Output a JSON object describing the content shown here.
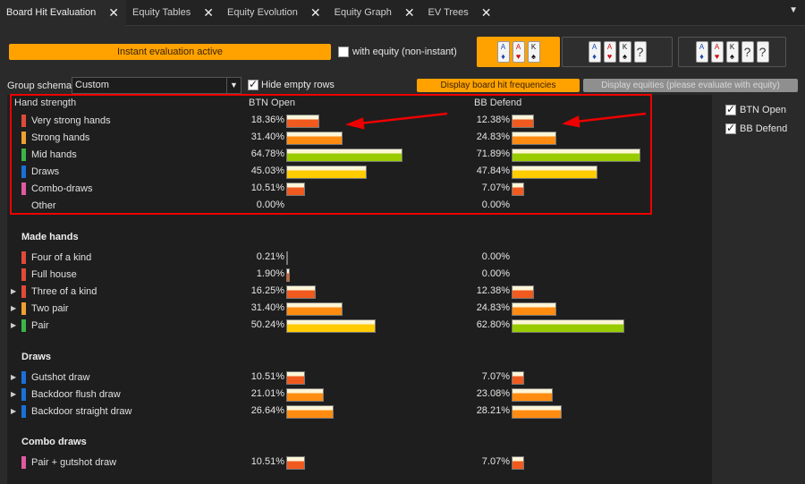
{
  "tabs": [
    {
      "label": "Board Hit Evaluation",
      "active": true
    },
    {
      "label": "Equity Tables"
    },
    {
      "label": "Equity Evolution"
    },
    {
      "label": "Equity Graph"
    },
    {
      "label": "EV Trees"
    }
  ],
  "controls": {
    "instant_label": "Instant evaluation active",
    "with_equity_label": "with equity (non-instant)",
    "group_schema_label": "Group schema:",
    "group_schema_value": "Custom",
    "hide_empty_label": "Hide empty rows",
    "display_freq_label": "Display board hit frequencies",
    "display_equity_label": "Display equities (please evaluate with equity)"
  },
  "card_groups": [
    [
      "A♦",
      "A♥",
      "K♠"
    ],
    [
      "A♦",
      "A♥",
      "K♠",
      "?"
    ],
    [
      "A♦",
      "A♥",
      "K♠",
      "?",
      "?"
    ]
  ],
  "columns": {
    "name": "Hand strength",
    "btn": "BTN Open",
    "bb": "BB Defend"
  },
  "legend": [
    {
      "label": "BTN Open",
      "checked": true
    },
    {
      "label": "BB Defend",
      "checked": true
    }
  ],
  "colors": {
    "very_strong": "#e04a3a",
    "strong": "#f0a030",
    "mid": "#3cb44a",
    "draws": "#1a6fd8",
    "combo": "#e05aa0",
    "highlight": "#ee0000",
    "accent": "#ffa200"
  },
  "summary": [
    {
      "label": "Very strong hands",
      "color": "#e04a3a",
      "btn": 18.36,
      "btn_text": "18.36%",
      "bb": 12.38,
      "bb_text": "12.38%"
    },
    {
      "label": "Strong hands",
      "color": "#f0a030",
      "btn": 31.4,
      "btn_text": "31.40%",
      "bb": 24.83,
      "bb_text": "24.83%"
    },
    {
      "label": "Mid hands",
      "color": "#3cb44a",
      "btn": 64.78,
      "btn_text": "64.78%",
      "bb": 71.89,
      "bb_text": "71.89%"
    },
    {
      "label": "Draws",
      "color": "#1a6fd8",
      "btn": 45.03,
      "btn_text": "45.03%",
      "bb": 47.84,
      "bb_text": "47.84%"
    },
    {
      "label": "Combo-draws",
      "color": "#e05aa0",
      "btn": 10.51,
      "btn_text": "10.51%",
      "bb": 7.07,
      "bb_text": "7.07%"
    },
    {
      "label": "Other",
      "color": null,
      "btn": 0,
      "btn_text": "0.00%",
      "bb": 0,
      "bb_text": "0.00%"
    }
  ],
  "sections": [
    {
      "title": "Made hands",
      "rows": [
        {
          "label": "Four of a kind",
          "color": "#e04a3a",
          "expand": false,
          "btn": 0.21,
          "btn_text": "0.21%",
          "bb": 0,
          "bb_text": "0.00%"
        },
        {
          "label": "Full house",
          "color": "#e04a3a",
          "expand": false,
          "btn": 1.9,
          "btn_text": "1.90%",
          "bb": 0,
          "bb_text": "0.00%"
        },
        {
          "label": "Three of a kind",
          "color": "#e04a3a",
          "expand": true,
          "btn": 16.25,
          "btn_text": "16.25%",
          "bb": 12.38,
          "bb_text": "12.38%"
        },
        {
          "label": "Two pair",
          "color": "#f0a030",
          "expand": true,
          "btn": 31.4,
          "btn_text": "31.40%",
          "bb": 24.83,
          "bb_text": "24.83%"
        },
        {
          "label": "Pair",
          "color": "#3cb44a",
          "expand": true,
          "btn": 50.24,
          "btn_text": "50.24%",
          "bb": 62.8,
          "bb_text": "62.80%"
        }
      ]
    },
    {
      "title": "Draws",
      "rows": [
        {
          "label": "Gutshot draw",
          "color": "#1a6fd8",
          "expand": true,
          "btn": 10.51,
          "btn_text": "10.51%",
          "bb": 7.07,
          "bb_text": "7.07%"
        },
        {
          "label": "Backdoor flush draw",
          "color": "#1a6fd8",
          "expand": true,
          "btn": 21.01,
          "btn_text": "21.01%",
          "bb": 23.08,
          "bb_text": "23.08%"
        },
        {
          "label": "Backdoor straight draw",
          "color": "#1a6fd8",
          "expand": true,
          "btn": 26.64,
          "btn_text": "26.64%",
          "bb": 28.21,
          "bb_text": "28.21%"
        }
      ]
    },
    {
      "title": "Combo draws",
      "rows": [
        {
          "label": "Pair + gutshot draw",
          "color": "#e05aa0",
          "expand": false,
          "btn": 10.51,
          "btn_text": "10.51%",
          "bb": 7.07,
          "bb_text": "7.07%"
        }
      ]
    }
  ]
}
